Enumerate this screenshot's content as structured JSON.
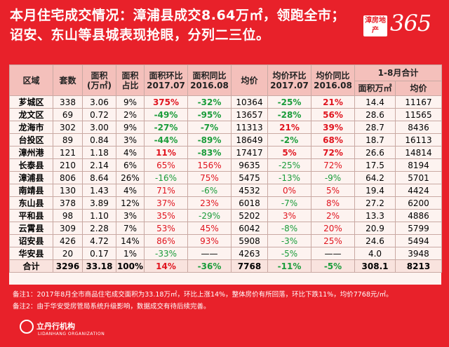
{
  "headline": {
    "line1": "本月住宅成交情况：漳浦县成交8.64万㎡，领跑全市；",
    "line2": "诏安、东山等县城表现抢眼，分列二三位。"
  },
  "logo": {
    "badge": "漳房地产",
    "number": "365"
  },
  "table": {
    "headers": {
      "region": "区域",
      "units": "套数",
      "area": "面积\n(万㎡)",
      "share": "面积\n占比",
      "area_mom": "面积环比\n2017.07",
      "area_yoy": "面积同比\n2016.08",
      "price": "均价",
      "price_mom": "均价环比\n2017.07",
      "price_yoy": "均价同比\n2016.08",
      "ytd": "1-8月合计",
      "ytd_area": "面积万㎡",
      "ytd_price": "均价"
    },
    "rows": [
      {
        "region": "芗城区",
        "units": "338",
        "area": "3.06",
        "share": "9%",
        "area_mom": "375%",
        "area_yoy": "-32%",
        "price": "10364",
        "price_mom": "-25%",
        "price_yoy": "21%",
        "ytd_area": "14.4",
        "ytd_price": "11167"
      },
      {
        "region": "龙文区",
        "units": "69",
        "area": "0.72",
        "share": "2%",
        "area_mom": "-49%",
        "area_yoy": "-95%",
        "price": "13657",
        "price_mom": "-28%",
        "price_yoy": "56%",
        "ytd_area": "28.6",
        "ytd_price": "11565"
      },
      {
        "region": "龙海市",
        "units": "302",
        "area": "3.00",
        "share": "9%",
        "area_mom": "-27%",
        "area_yoy": "-7%",
        "price": "11313",
        "price_mom": "21%",
        "price_yoy": "39%",
        "ytd_area": "28.7",
        "ytd_price": "8436"
      },
      {
        "region": "台投区",
        "units": "89",
        "area": "0.84",
        "share": "3%",
        "area_mom": "-44%",
        "area_yoy": "-89%",
        "price": "18649",
        "price_mom": "-2%",
        "price_yoy": "68%",
        "ytd_area": "18.7",
        "ytd_price": "16113"
      },
      {
        "region": "漳州港",
        "units": "121",
        "area": "1.18",
        "share": "4%",
        "area_mom": "11%",
        "area_yoy": "-83%",
        "price": "17417",
        "price_mom": "5%",
        "price_yoy": "72%",
        "ytd_area": "26.6",
        "ytd_price": "14814"
      },
      {
        "region": "长泰县",
        "units": "210",
        "area": "2.14",
        "share": "6%",
        "area_mom": "65%",
        "area_yoy": "156%",
        "price": "9635",
        "price_mom": "-25%",
        "price_yoy": "72%",
        "ytd_area": "17.5",
        "ytd_price": "8194"
      },
      {
        "region": "漳浦县",
        "units": "806",
        "area": "8.64",
        "share": "26%",
        "area_mom": "-16%",
        "area_yoy": "75%",
        "price": "5475",
        "price_mom": "-13%",
        "price_yoy": "-9%",
        "ytd_area": "64.2",
        "ytd_price": "5701"
      },
      {
        "region": "南靖县",
        "units": "130",
        "area": "1.43",
        "share": "4%",
        "area_mom": "71%",
        "area_yoy": "-6%",
        "price": "4532",
        "price_mom": "0%",
        "price_yoy": "5%",
        "ytd_area": "19.4",
        "ytd_price": "4424"
      },
      {
        "region": "东山县",
        "units": "378",
        "area": "3.89",
        "share": "12%",
        "area_mom": "37%",
        "area_yoy": "23%",
        "price": "6018",
        "price_mom": "-7%",
        "price_yoy": "8%",
        "ytd_area": "27.2",
        "ytd_price": "6200"
      },
      {
        "region": "平和县",
        "units": "98",
        "area": "1.10",
        "share": "3%",
        "area_mom": "35%",
        "area_yoy": "-29%",
        "price": "5202",
        "price_mom": "3%",
        "price_yoy": "2%",
        "ytd_area": "13.3",
        "ytd_price": "4886"
      },
      {
        "region": "云霄县",
        "units": "309",
        "area": "2.28",
        "share": "7%",
        "area_mom": "53%",
        "area_yoy": "45%",
        "price": "6042",
        "price_mom": "-8%",
        "price_yoy": "20%",
        "ytd_area": "20.9",
        "ytd_price": "5799"
      },
      {
        "region": "诏安县",
        "units": "426",
        "area": "4.72",
        "share": "14%",
        "area_mom": "86%",
        "area_yoy": "93%",
        "price": "5908",
        "price_mom": "-3%",
        "price_yoy": "25%",
        "ytd_area": "24.6",
        "ytd_price": "5494"
      },
      {
        "region": "华安县",
        "units": "20",
        "area": "0.17",
        "share": "1%",
        "area_mom": "-33%",
        "area_yoy": "——",
        "price": "4263",
        "price_mom": "-5%",
        "price_yoy": "——",
        "ytd_area": "4.0",
        "ytd_price": "3948"
      }
    ],
    "total": {
      "region": "合计",
      "units": "3296",
      "area": "33.18",
      "share": "100%",
      "area_mom": "14%",
      "area_yoy": "-36%",
      "price": "7768",
      "price_mom": "-11%",
      "price_yoy": "-5%",
      "ytd_area": "308.1",
      "ytd_price": "8213"
    }
  },
  "notes": [
    "备注1：2017年8月全市商品住宅成交面积为33.18万㎡，环比上涨14%，整体房价有所回落，环比下跌11%，均价7768元/㎡。",
    "备注2：由于华安受房管局系统升级影响，数据成交有待后续完善。"
  ],
  "brand": {
    "name": "立丹行机构",
    "sub": "LIDANHANG ORGANIZATION"
  },
  "colors": {
    "background": "#e8212a",
    "increase": "#e0141e",
    "decrease": "#1a9c3a",
    "header": "#f4c0bb"
  }
}
